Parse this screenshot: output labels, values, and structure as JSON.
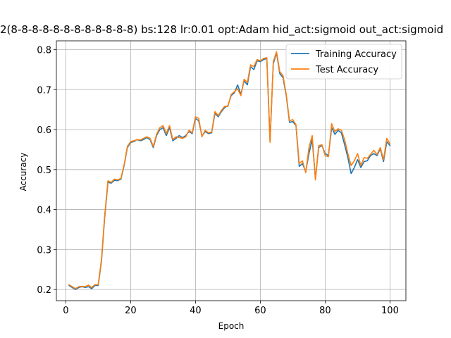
{
  "chart_data": {
    "type": "line",
    "title": "2(8-8-8-8-8-8-8-8-8-8-8-8) bs:128 lr:0.01 opt:Adam hid_act:sigmoid out_act:sigmoid",
    "xlabel": "Epoch",
    "ylabel": "Accuracy",
    "xlim": [
      -2.9,
      104.9
    ],
    "ylim": [
      0.172,
      0.822
    ],
    "xticks": [
      0,
      20,
      40,
      60,
      80,
      100
    ],
    "yticks": [
      0.2,
      0.3,
      0.4,
      0.5,
      0.6,
      0.7,
      0.8
    ],
    "xtick_labels": [
      "0",
      "20",
      "40",
      "60",
      "80",
      "100"
    ],
    "ytick_labels": [
      "0.2",
      "0.3",
      "0.4",
      "0.5",
      "0.6",
      "0.7",
      "0.8"
    ],
    "grid": true,
    "legend_position": "upper right",
    "x": [
      1,
      2,
      3,
      4,
      5,
      6,
      7,
      8,
      9,
      10,
      11,
      12,
      13,
      14,
      15,
      16,
      17,
      18,
      19,
      20,
      21,
      22,
      23,
      24,
      25,
      26,
      27,
      28,
      29,
      30,
      31,
      32,
      33,
      34,
      35,
      36,
      37,
      38,
      39,
      40,
      41,
      42,
      43,
      44,
      45,
      46,
      47,
      48,
      49,
      50,
      51,
      52,
      53,
      54,
      55,
      56,
      57,
      58,
      59,
      60,
      61,
      62,
      63,
      64,
      65,
      66,
      67,
      68,
      69,
      70,
      71,
      72,
      73,
      74,
      75,
      76,
      77,
      78,
      79,
      80,
      81,
      82,
      83,
      84,
      85,
      86,
      87,
      88,
      89,
      90,
      91,
      92,
      93,
      94,
      95,
      96,
      97,
      98,
      99,
      100
    ],
    "series": [
      {
        "name": "Training Accuracy",
        "color": "#1f77b4",
        "values": [
          0.21,
          0.205,
          0.2,
          0.205,
          0.207,
          0.205,
          0.207,
          0.202,
          0.21,
          0.21,
          0.27,
          0.38,
          0.468,
          0.466,
          0.473,
          0.472,
          0.476,
          0.51,
          0.555,
          0.568,
          0.57,
          0.575,
          0.572,
          0.575,
          0.58,
          0.575,
          0.555,
          0.585,
          0.6,
          0.605,
          0.585,
          0.605,
          0.572,
          0.578,
          0.585,
          0.58,
          0.585,
          0.595,
          0.59,
          0.628,
          0.622,
          0.584,
          0.595,
          0.59,
          0.592,
          0.641,
          0.632,
          0.645,
          0.655,
          0.66,
          0.685,
          0.692,
          0.712,
          0.688,
          0.722,
          0.712,
          0.758,
          0.75,
          0.772,
          0.77,
          0.775,
          0.778,
          0.572,
          0.765,
          0.792,
          0.74,
          0.73,
          0.685,
          0.618,
          0.62,
          0.61,
          0.508,
          0.515,
          0.495,
          0.54,
          0.575,
          0.478,
          0.555,
          0.56,
          0.54,
          0.535,
          0.605,
          0.588,
          0.598,
          0.592,
          0.562,
          0.53,
          0.49,
          0.505,
          0.525,
          0.505,
          0.52,
          0.522,
          0.535,
          0.54,
          0.535,
          0.552,
          0.52,
          0.57,
          0.56
        ]
      },
      {
        "name": "Test Accuracy",
        "color": "#ff7f0e",
        "values": [
          0.212,
          0.207,
          0.202,
          0.207,
          0.208,
          0.207,
          0.211,
          0.205,
          0.212,
          0.212,
          0.275,
          0.385,
          0.472,
          0.468,
          0.476,
          0.474,
          0.478,
          0.512,
          0.558,
          0.57,
          0.572,
          0.575,
          0.574,
          0.578,
          0.582,
          0.578,
          0.558,
          0.588,
          0.605,
          0.61,
          0.59,
          0.61,
          0.575,
          0.582,
          0.58,
          0.578,
          0.582,
          0.598,
          0.592,
          0.632,
          0.628,
          0.582,
          0.598,
          0.592,
          0.594,
          0.645,
          0.635,
          0.648,
          0.658,
          0.658,
          0.688,
          0.695,
          0.702,
          0.685,
          0.726,
          0.718,
          0.762,
          0.758,
          0.775,
          0.772,
          0.778,
          0.78,
          0.568,
          0.77,
          0.795,
          0.745,
          0.735,
          0.688,
          0.622,
          0.625,
          0.612,
          0.515,
          0.522,
          0.492,
          0.555,
          0.585,
          0.474,
          0.56,
          0.562,
          0.535,
          0.532,
          0.615,
          0.595,
          0.602,
          0.598,
          0.575,
          0.54,
          0.51,
          0.522,
          0.54,
          0.51,
          0.53,
          0.528,
          0.538,
          0.548,
          0.538,
          0.555,
          0.525,
          0.578,
          0.565
        ]
      }
    ]
  }
}
